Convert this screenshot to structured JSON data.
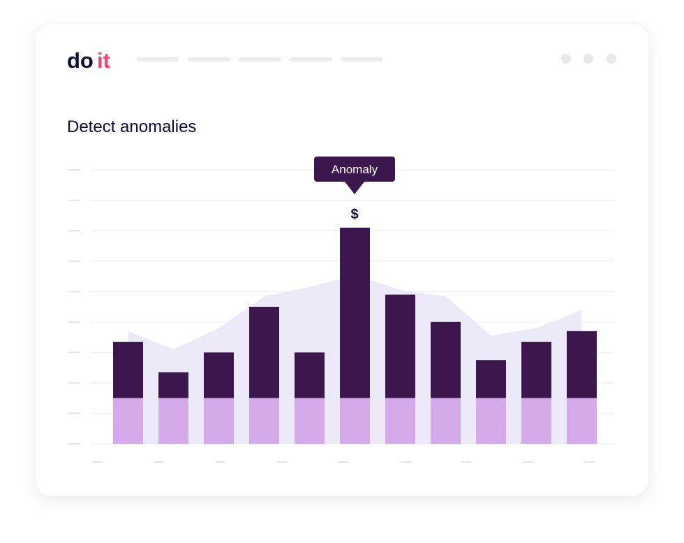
{
  "header": {
    "logo_do": "do",
    "logo_it": "it"
  },
  "chart_data": {
    "type": "bar",
    "stacked": true,
    "title": "Detect anomalies",
    "categories": [
      null,
      null,
      null,
      null,
      null,
      null,
      null,
      null,
      null,
      null,
      null
    ],
    "series": [
      {
        "color": "#d5aaea",
        "values": [
          1.5,
          1.5,
          1.5,
          1.5,
          1.5,
          1.5,
          1.5,
          1.5,
          1.5,
          1.5,
          1.5
        ]
      },
      {
        "color": "#3c174d",
        "values": [
          1.85,
          0.85,
          1.5,
          3.0,
          1.5,
          5.6,
          3.4,
          2.5,
          1.25,
          1.85,
          2.2
        ]
      }
    ],
    "area": {
      "color": "#ece9f8",
      "values": [
        3.7,
        3.1,
        3.8,
        4.85,
        5.15,
        5.55,
        5.05,
        4.85,
        3.55,
        3.8,
        4.4
      ]
    },
    "annotation": {
      "label": "Anomaly",
      "marker": "$"
    },
    "ylim": [
      0,
      9
    ],
    "yticks": [
      0,
      1,
      2,
      3,
      4,
      5,
      6,
      7,
      8,
      9
    ],
    "grid": true
  }
}
